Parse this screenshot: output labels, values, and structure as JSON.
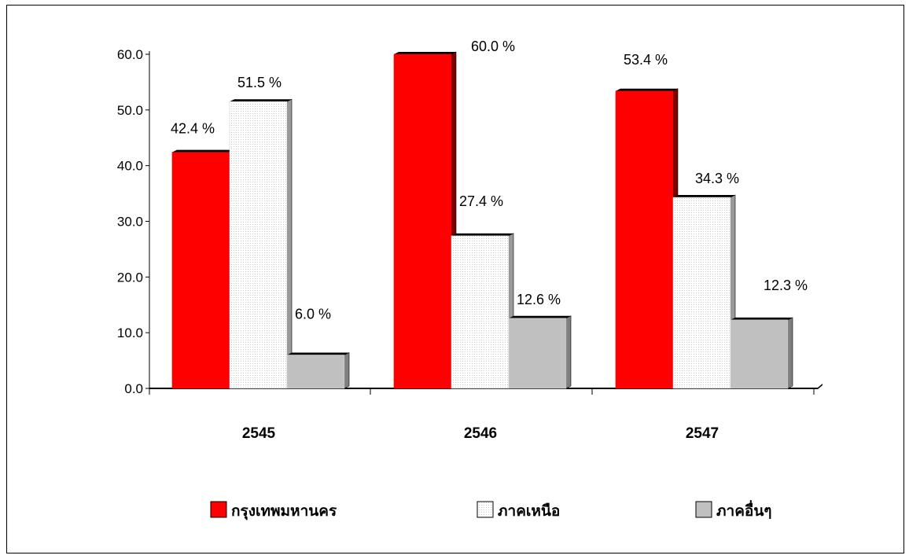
{
  "chart_data": {
    "type": "bar",
    "categories": [
      "2545",
      "2546",
      "2547"
    ],
    "series": [
      {
        "name": "กรุงเทพมหานคร",
        "values": [
          42.4,
          60.0,
          53.4
        ],
        "labels": [
          "42.4 %",
          "60.0 %",
          "53.4 %"
        ],
        "color": "#ff0000"
      },
      {
        "name": "ภาคเหนือ",
        "values": [
          51.5,
          27.4,
          34.3
        ],
        "labels": [
          "51.5 %",
          "27.4 %",
          "34.3 %"
        ],
        "color": "#f7f7f7"
      },
      {
        "name": "ภาคอื่นๆ",
        "values": [
          6.0,
          12.6,
          12.3
        ],
        "labels": [
          "6.0 %",
          "12.6 %",
          "12.3 %"
        ],
        "color": "#c0c0c0"
      }
    ],
    "yticks": [
      "0.0",
      "10.0",
      "20.0",
      "30.0",
      "40.0",
      "50.0",
      "60.0"
    ],
    "ylim": [
      0,
      60
    ],
    "grid": false,
    "legend_position": "bottom",
    "style": "3d-bar"
  }
}
